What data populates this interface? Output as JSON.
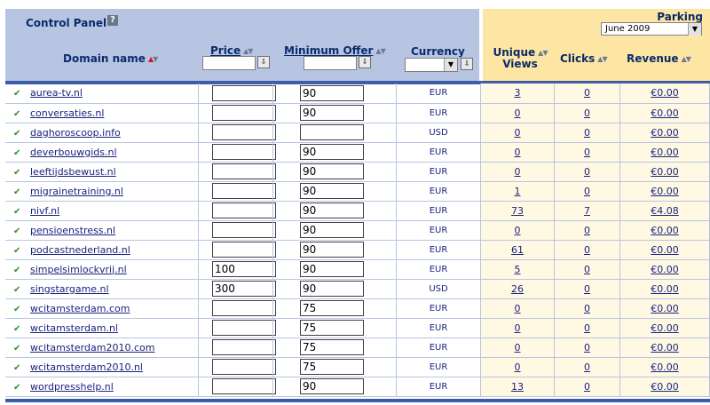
{
  "header": {
    "title": "Control Panel",
    "help_glyph": "?",
    "parking_label": "Parking",
    "month_value": "June 2009",
    "dropdown_glyph": "▼",
    "filter_glyph": "⇩"
  },
  "columns": {
    "domain": "Domain name",
    "price": "Price",
    "min_offer": "Minimum Offer",
    "currency": "Currency",
    "unique_views_1": "Unique",
    "unique_views_2": "Views",
    "clicks": "Clicks",
    "revenue": "Revenue"
  },
  "sort_glyphs": {
    "up": "▲",
    "down": "▼"
  },
  "check_glyph": "✔",
  "rows": [
    {
      "domain": "aurea-tv.nl",
      "price": "",
      "min_offer": "90",
      "currency": "EUR",
      "unique_views": "3",
      "clicks": "0",
      "revenue": "€0.00"
    },
    {
      "domain": "conversaties.nl",
      "price": "",
      "min_offer": "90",
      "currency": "EUR",
      "unique_views": "0",
      "clicks": "0",
      "revenue": "€0.00"
    },
    {
      "domain": "daghoroscoop.info",
      "price": "",
      "min_offer": "",
      "currency": "USD",
      "unique_views": "0",
      "clicks": "0",
      "revenue": "€0.00"
    },
    {
      "domain": "deverbouwgids.nl",
      "price": "",
      "min_offer": "90",
      "currency": "EUR",
      "unique_views": "0",
      "clicks": "0",
      "revenue": "€0.00"
    },
    {
      "domain": "leeftijdsbewust.nl",
      "price": "",
      "min_offer": "90",
      "currency": "EUR",
      "unique_views": "0",
      "clicks": "0",
      "revenue": "€0.00"
    },
    {
      "domain": "migrainetraining.nl",
      "price": "",
      "min_offer": "90",
      "currency": "EUR",
      "unique_views": "1",
      "clicks": "0",
      "revenue": "€0.00"
    },
    {
      "domain": "nivf.nl",
      "price": "",
      "min_offer": "90",
      "currency": "EUR",
      "unique_views": "73",
      "clicks": "7",
      "revenue": "€4.08"
    },
    {
      "domain": "pensioenstress.nl",
      "price": "",
      "min_offer": "90",
      "currency": "EUR",
      "unique_views": "0",
      "clicks": "0",
      "revenue": "€0.00"
    },
    {
      "domain": "podcastnederland.nl",
      "price": "",
      "min_offer": "90",
      "currency": "EUR",
      "unique_views": "61",
      "clicks": "0",
      "revenue": "€0.00"
    },
    {
      "domain": "simpelsimlockvrij.nl",
      "price": "100",
      "min_offer": "90",
      "currency": "EUR",
      "unique_views": "5",
      "clicks": "0",
      "revenue": "€0.00"
    },
    {
      "domain": "singstargame.nl",
      "price": "300",
      "min_offer": "90",
      "currency": "USD",
      "unique_views": "26",
      "clicks": "0",
      "revenue": "€0.00"
    },
    {
      "domain": "wcitamsterdam.com",
      "price": "",
      "min_offer": "75",
      "currency": "EUR",
      "unique_views": "0",
      "clicks": "0",
      "revenue": "€0.00"
    },
    {
      "domain": "wcitamsterdam.nl",
      "price": "",
      "min_offer": "75",
      "currency": "EUR",
      "unique_views": "0",
      "clicks": "0",
      "revenue": "€0.00"
    },
    {
      "domain": "wcitamsterdam2010.com",
      "price": "",
      "min_offer": "75",
      "currency": "EUR",
      "unique_views": "0",
      "clicks": "0",
      "revenue": "€0.00"
    },
    {
      "domain": "wcitamsterdam2010.nl",
      "price": "",
      "min_offer": "75",
      "currency": "EUR",
      "unique_views": "0",
      "clicks": "0",
      "revenue": "€0.00"
    },
    {
      "domain": "wordpresshelp.nl",
      "price": "",
      "min_offer": "90",
      "currency": "EUR",
      "unique_views": "13",
      "clicks": "0",
      "revenue": "€0.00"
    }
  ]
}
